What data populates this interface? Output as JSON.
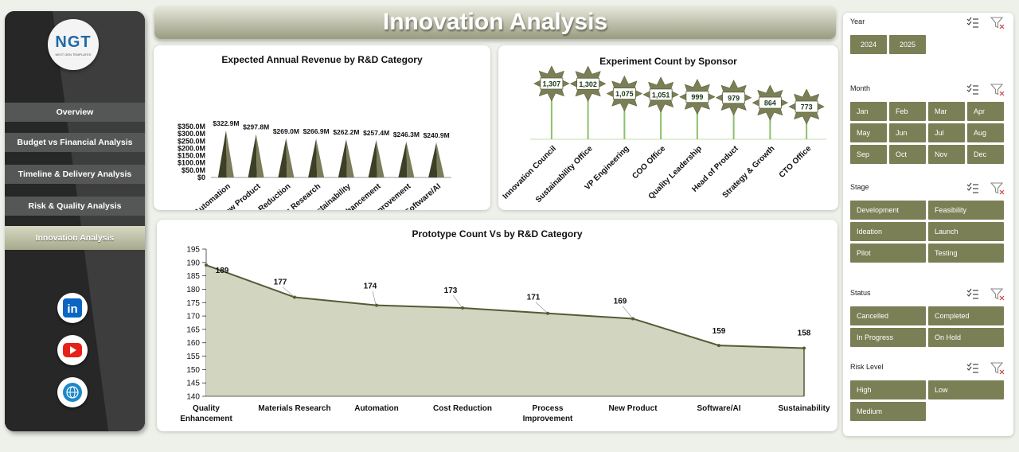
{
  "title": "Innovation Analysis",
  "logo": {
    "text": "NGT",
    "subtitle": "NEXT GEN TEMPLATES"
  },
  "nav": [
    {
      "label": "Overview"
    },
    {
      "label": "Budget vs Financial Analysis"
    },
    {
      "label": "Timeline & Delivery  Analysis"
    },
    {
      "label": "Risk & Quality Analysis"
    },
    {
      "label": "Innovation Analysis"
    }
  ],
  "social": [
    {
      "icon": "linkedin-icon",
      "color": "#0a66c2"
    },
    {
      "icon": "youtube-icon",
      "color": "#e62117"
    },
    {
      "icon": "globe-icon",
      "color": "#1e88c8"
    }
  ],
  "colors": {
    "accent": "#7b7f55",
    "area_fill": "#d2d5c0",
    "line": "#555a35",
    "star": "#7b7f55"
  },
  "chart_data": [
    {
      "type": "bar",
      "title": "Expected Annual Revenue by R&D Category",
      "categories": [
        "Automation",
        "New Product",
        "Cost Reduction",
        "Materials Research",
        "Sustainability",
        "Quality Enhancement",
        "Process Improvement",
        "Software/AI"
      ],
      "values": [
        322.9,
        297.8,
        269.0,
        266.9,
        262.2,
        257.4,
        246.3,
        240.9
      ],
      "data_labels": [
        "$322.9M",
        "$297.8M",
        "$269.0M",
        "$266.9M",
        "$262.2M",
        "$257.4M",
        "$246.3M",
        "$240.9M"
      ],
      "yticks": [
        "$0",
        "$50.0M",
        "$100.0M",
        "$150.0M",
        "$200.0M",
        "$250.0M",
        "$300.0M",
        "$350.0M"
      ],
      "ylim": [
        0,
        350
      ]
    },
    {
      "type": "bar",
      "title": "Experiment Count by Sponsor",
      "categories": [
        "Innovation Council",
        "Sustainability Office",
        "VP Engineering",
        "COO Office",
        "Quality Leadership",
        "Head of Product",
        "Strategy & Growth",
        "CTO Office"
      ],
      "values": [
        1307,
        1302,
        1075,
        1051,
        999,
        979,
        864,
        773
      ],
      "data_labels": [
        "1,307",
        "1,302",
        "1,075",
        "1,051",
        "999",
        "979",
        "864",
        "773"
      ]
    },
    {
      "type": "area",
      "title": "Prototype Count Vs  by R&D Category",
      "categories": [
        "Quality Enhancement",
        "Materials Research",
        "Automation",
        "Cost Reduction",
        "Process Improvement",
        "New Product",
        "Software/AI",
        "Sustainability"
      ],
      "values": [
        189,
        177,
        174,
        173,
        171,
        169,
        159,
        158
      ],
      "yticks": [
        "140",
        "145",
        "150",
        "155",
        "160",
        "165",
        "170",
        "175",
        "180",
        "185",
        "190",
        "195"
      ],
      "ylim": [
        140,
        195
      ]
    }
  ],
  "filters": [
    {
      "label": "Year",
      "options": [
        "2024",
        "2025"
      ]
    },
    {
      "label": "Month",
      "options": [
        "Jan",
        "Feb",
        "Mar",
        "Apr",
        "May",
        "Jun",
        "Jul",
        "Aug",
        "Sep",
        "Oct",
        "Nov",
        "Dec"
      ]
    },
    {
      "label": "Stage",
      "options": [
        "Development",
        "Feasibility",
        "Ideation",
        "Launch",
        "Pilot",
        "Testing"
      ]
    },
    {
      "label": "Status",
      "options": [
        "Cancelled",
        "Completed",
        "In Progress",
        "On Hold"
      ]
    },
    {
      "label": "Risk Level",
      "options": [
        "High",
        "Low",
        "Medium"
      ]
    }
  ]
}
